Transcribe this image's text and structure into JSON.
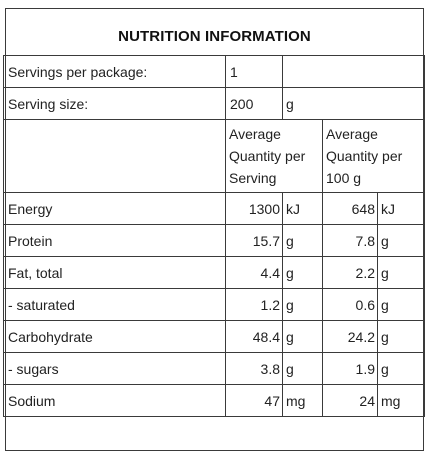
{
  "title": "NUTRITION INFORMATION",
  "servings_per_package": {
    "label": "Servings per package:",
    "value": "1",
    "unit": ""
  },
  "serving_size": {
    "label": "Serving size:",
    "value": "200",
    "unit": "g"
  },
  "column_headers": {
    "per_serving": "Average Quantity per Serving",
    "per_100g": "Average Quantity per 100 g"
  },
  "rows": [
    {
      "label": "Energy",
      "serving": "1300",
      "serving_unit": "kJ",
      "per100": "648",
      "per100_unit": "kJ"
    },
    {
      "label": "Protein",
      "serving": "15.7",
      "serving_unit": "g",
      "per100": "7.8",
      "per100_unit": "g"
    },
    {
      "label": "Fat, total",
      "serving": "4.4",
      "serving_unit": "g",
      "per100": "2.2",
      "per100_unit": "g"
    },
    {
      "label": "- saturated",
      "serving": "1.2",
      "serving_unit": "g",
      "per100": "0.6",
      "per100_unit": "g"
    },
    {
      "label": "Carbohydrate",
      "serving": "48.4",
      "serving_unit": "g",
      "per100": "24.2",
      "per100_unit": "g"
    },
    {
      "label": "- sugars",
      "serving": "3.8",
      "serving_unit": "g",
      "per100": "1.9",
      "per100_unit": "g"
    },
    {
      "label": "Sodium",
      "serving": "47",
      "serving_unit": "mg",
      "per100": "24",
      "per100_unit": "mg"
    }
  ]
}
